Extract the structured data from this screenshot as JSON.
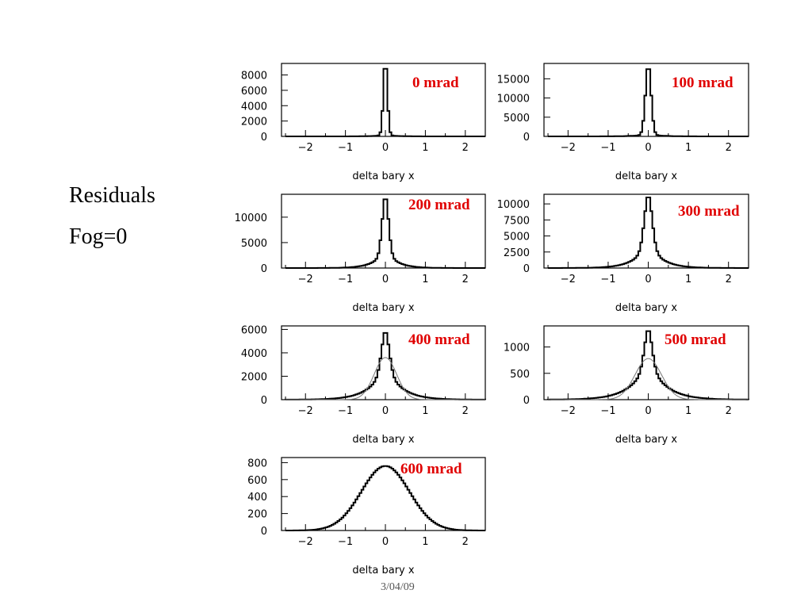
{
  "slide": {
    "side_title": "Residuals",
    "side_subtitle": "Fog=0",
    "footer": "3/04/09"
  },
  "colors": {
    "badge": "#e00000",
    "hist": "#000000",
    "fit": "#777777"
  },
  "chart_data": [
    {
      "type": "line",
      "title": "0 mrad",
      "xlabel": "delta bary x",
      "ylabel": "",
      "xlim": [
        -2.6,
        2.5
      ],
      "ylim": [
        0,
        9500
      ],
      "xticks": [
        -2,
        -1,
        0,
        1,
        2
      ],
      "yticks": [
        0,
        2000,
        4000,
        6000,
        8000
      ],
      "series": [
        {
          "peak": 8800,
          "sigma_core": 0.05,
          "tail_frac": 0.02,
          "sigma_tail": 0.25
        }
      ]
    },
    {
      "type": "line",
      "title": "100 mrad",
      "xlabel": "delta bary x",
      "ylabel": "",
      "xlim": [
        -2.6,
        2.5
      ],
      "ylim": [
        0,
        19000
      ],
      "xticks": [
        -2,
        -1,
        0,
        1,
        2
      ],
      "yticks": [
        0,
        5000,
        10000,
        15000
      ],
      "series": [
        {
          "peak": 17500,
          "sigma_core": 0.07,
          "tail_frac": 0.03,
          "sigma_tail": 0.3
        }
      ]
    },
    {
      "type": "line",
      "title": "200 mrad",
      "xlabel": "delta bary x",
      "ylabel": "",
      "xlim": [
        -2.6,
        2.5
      ],
      "ylim": [
        0,
        14500
      ],
      "xticks": [
        -2,
        -1,
        0,
        1,
        2
      ],
      "yticks": [
        0,
        5000,
        10000
      ],
      "series": [
        {
          "peak": 13500,
          "sigma_core": 0.08,
          "tail_frac": 0.25,
          "sigma_tail": 0.28
        }
      ]
    },
    {
      "type": "line",
      "title": "300 mrad",
      "xlabel": "delta bary x",
      "ylabel": "",
      "xlim": [
        -2.6,
        2.5
      ],
      "ylim": [
        0,
        11500
      ],
      "xticks": [
        -2,
        -1,
        0,
        1,
        2
      ],
      "yticks": [
        0,
        2500,
        5000,
        7500,
        10000
      ],
      "series": [
        {
          "peak": 11000,
          "sigma_core": 0.1,
          "tail_frac": 0.35,
          "sigma_tail": 0.33
        }
      ]
    },
    {
      "type": "line",
      "title": "400 mrad",
      "xlabel": "delta bary x",
      "ylabel": "",
      "xlim": [
        -2.6,
        2.5
      ],
      "ylim": [
        0,
        6300
      ],
      "xticks": [
        -2,
        -1,
        0,
        1,
        2
      ],
      "yticks": [
        0,
        2000,
        4000,
        6000
      ],
      "series": [
        {
          "peak": 5700,
          "sigma_core": 0.1,
          "tail_frac": 0.5,
          "sigma_tail": 0.38,
          "fit_peak": 3600,
          "fit_sigma": 0.28
        }
      ]
    },
    {
      "type": "line",
      "title": "500 mrad",
      "xlabel": "delta bary x",
      "ylabel": "",
      "xlim": [
        -2.6,
        2.5
      ],
      "ylim": [
        0,
        1400
      ],
      "xticks": [
        -2,
        -1,
        0,
        1,
        2
      ],
      "yticks": [
        0,
        500,
        1000
      ],
      "series": [
        {
          "peak": 1300,
          "sigma_core": 0.1,
          "tail_frac": 0.55,
          "sigma_tail": 0.42,
          "fit_peak": 780,
          "fit_sigma": 0.33
        }
      ]
    },
    {
      "type": "line",
      "title": "600 mrad",
      "xlabel": "delta bary x",
      "ylabel": "",
      "xlim": [
        -2.6,
        2.5
      ],
      "ylim": [
        0,
        860
      ],
      "xticks": [
        -2,
        -1,
        0,
        1,
        2
      ],
      "yticks": [
        0,
        200,
        400,
        600,
        800
      ],
      "series": [
        {
          "peak": 760,
          "sigma_core": 0.6,
          "tail_frac": 0.0,
          "sigma_tail": 0.6
        }
      ]
    }
  ]
}
